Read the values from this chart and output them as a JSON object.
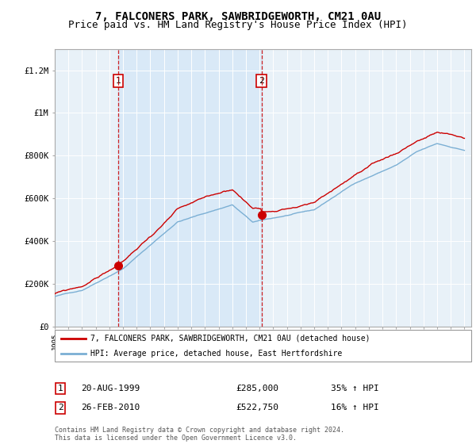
{
  "title": "7, FALCONERS PARK, SAWBRIDGEWORTH, CM21 0AU",
  "subtitle": "Price paid vs. HM Land Registry's House Price Index (HPI)",
  "title_fontsize": 10,
  "subtitle_fontsize": 9,
  "ylabel_ticks": [
    "£0",
    "£200K",
    "£400K",
    "£600K",
    "£800K",
    "£1M",
    "£1.2M"
  ],
  "ylabel_values": [
    0,
    200000,
    400000,
    600000,
    800000,
    1000000,
    1200000
  ],
  "ylim": [
    0,
    1300000
  ],
  "xlim": [
    1995.0,
    2025.5
  ],
  "xticks": [
    1995,
    1996,
    1997,
    1998,
    1999,
    2000,
    2001,
    2002,
    2003,
    2004,
    2005,
    2006,
    2007,
    2008,
    2009,
    2010,
    2011,
    2012,
    2013,
    2014,
    2015,
    2016,
    2017,
    2018,
    2019,
    2020,
    2021,
    2022,
    2023,
    2024,
    2025
  ],
  "sale1_year": 1999.64,
  "sale1_price": 285000,
  "sale2_year": 2010.15,
  "sale2_price": 522750,
  "sale1_label": "1",
  "sale2_label": "2",
  "red_color": "#cc0000",
  "blue_color": "#7bafd4",
  "shade_color": "#d6e8f7",
  "bg_color": "#e8f1f8",
  "grid_color": "#ffffff",
  "legend1": "7, FALCONERS PARK, SAWBRIDGEWORTH, CM21 0AU (detached house)",
  "legend2": "HPI: Average price, detached house, East Hertfordshire",
  "table_row1": [
    "1",
    "20-AUG-1999",
    "£285,000",
    "35% ↑ HPI"
  ],
  "table_row2": [
    "2",
    "26-FEB-2010",
    "£522,750",
    "16% ↑ HPI"
  ],
  "footnote": "Contains HM Land Registry data © Crown copyright and database right 2024.\nThis data is licensed under the Open Government Licence v3.0."
}
